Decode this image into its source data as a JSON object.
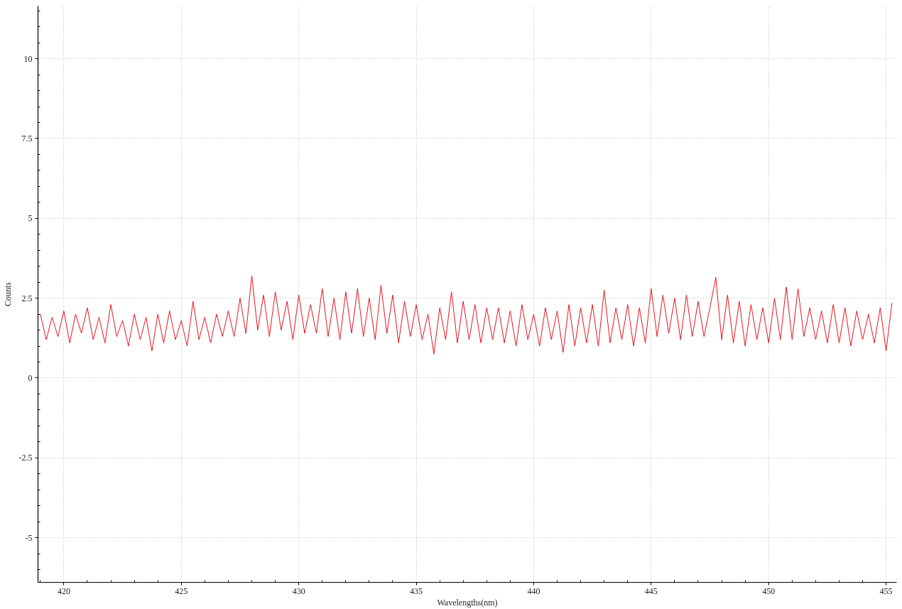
{
  "chart_data": {
    "type": "line",
    "xlabel": "Wavelengths(nm)",
    "ylabel": "Counts",
    "xlim": [
      418.9,
      455.45
    ],
    "ylim": [
      -6.4,
      11.65
    ],
    "xticks": [
      {
        "value": 419,
        "label": null
      },
      420,
      {
        "value": 421,
        "label": null
      },
      {
        "value": 422,
        "label": null
      },
      {
        "value": 423,
        "label": null
      },
      {
        "value": 424,
        "label": null
      },
      425,
      {
        "value": 426,
        "label": null
      },
      {
        "value": 427,
        "label": null
      },
      {
        "value": 428,
        "label": null
      },
      {
        "value": 429,
        "label": null
      },
      430,
      {
        "value": 431,
        "label": null
      },
      {
        "value": 432,
        "label": null
      },
      {
        "value": 433,
        "label": null
      },
      {
        "value": 434,
        "label": null
      },
      435,
      {
        "value": 436,
        "label": null
      },
      {
        "value": 437,
        "label": null
      },
      {
        "value": 438,
        "label": null
      },
      {
        "value": 439,
        "label": null
      },
      440,
      {
        "value": 441,
        "label": null
      },
      {
        "value": 442,
        "label": null
      },
      {
        "value": 443,
        "label": null
      },
      {
        "value": 444,
        "label": null
      },
      445,
      {
        "value": 446,
        "label": null
      },
      {
        "value": 447,
        "label": null
      },
      {
        "value": 448,
        "label": null
      },
      {
        "value": 449,
        "label": null
      },
      450,
      {
        "value": 451,
        "label": null
      },
      {
        "value": 452,
        "label": null
      },
      {
        "value": 453,
        "label": null
      },
      {
        "value": 454,
        "label": null
      },
      455
    ],
    "yticks": [
      {
        "value": -6,
        "label": null
      },
      {
        "value": -5.5,
        "label": null
      },
      -5,
      {
        "value": -4.5,
        "label": null
      },
      {
        "value": -4,
        "label": null
      },
      {
        "value": -3.5,
        "label": null
      },
      {
        "value": -3,
        "label": null
      },
      -2.5,
      {
        "value": -2,
        "label": null
      },
      {
        "value": -1.5,
        "label": null
      },
      {
        "value": -1,
        "label": null
      },
      {
        "value": -0.5,
        "label": null
      },
      0,
      {
        "value": 0.5,
        "label": null
      },
      {
        "value": 1,
        "label": null
      },
      {
        "value": 1.5,
        "label": null
      },
      {
        "value": 2,
        "label": null
      },
      2.5,
      {
        "value": 3,
        "label": null
      },
      {
        "value": 3.5,
        "label": null
      },
      {
        "value": 4,
        "label": null
      },
      {
        "value": 4.5,
        "label": null
      },
      5,
      {
        "value": 5.5,
        "label": null
      },
      {
        "value": 6,
        "label": null
      },
      {
        "value": 6.5,
        "label": null
      },
      {
        "value": 7,
        "label": null
      },
      7.5,
      {
        "value": 8,
        "label": null
      },
      {
        "value": 8.5,
        "label": null
      },
      {
        "value": 9,
        "label": null
      },
      {
        "value": 9.5,
        "label": null
      },
      10,
      {
        "value": 10.5,
        "label": null
      },
      {
        "value": 11,
        "label": null
      },
      {
        "value": 11.5,
        "label": null
      }
    ],
    "grid": true,
    "x": [
      419.0,
      419.25,
      419.5,
      419.75,
      420.0,
      420.25,
      420.5,
      420.75,
      421.0,
      421.25,
      421.5,
      421.75,
      422.0,
      422.25,
      422.5,
      422.75,
      423.0,
      423.25,
      423.5,
      423.75,
      424.0,
      424.25,
      424.5,
      424.75,
      425.0,
      425.25,
      425.5,
      425.75,
      426.0,
      426.25,
      426.5,
      426.75,
      427.0,
      427.25,
      427.5,
      427.75,
      428.0,
      428.25,
      428.5,
      428.75,
      429.0,
      429.25,
      429.5,
      429.75,
      430.0,
      430.25,
      430.5,
      430.75,
      431.0,
      431.25,
      431.5,
      431.75,
      432.0,
      432.25,
      432.5,
      432.75,
      433.0,
      433.25,
      433.5,
      433.75,
      434.0,
      434.25,
      434.5,
      434.75,
      435.0,
      435.25,
      435.5,
      435.75,
      436.0,
      436.25,
      436.5,
      436.75,
      437.0,
      437.25,
      437.5,
      437.75,
      438.0,
      438.25,
      438.5,
      438.75,
      439.0,
      439.25,
      439.5,
      439.75,
      440.0,
      440.25,
      440.5,
      440.75,
      441.0,
      441.25,
      441.5,
      441.75,
      442.0,
      442.25,
      442.5,
      442.75,
      443.0,
      443.25,
      443.5,
      443.75,
      444.0,
      444.25,
      444.5,
      444.75,
      445.0,
      445.25,
      445.5,
      445.75,
      446.0,
      446.25,
      446.5,
      446.75,
      447.0,
      447.25,
      447.5,
      447.75,
      448.0,
      448.25,
      448.5,
      448.75,
      449.0,
      449.25,
      449.5,
      449.75,
      450.0,
      450.25,
      450.5,
      450.75,
      451.0,
      451.25,
      451.5,
      451.75,
      452.0,
      452.25,
      452.5,
      452.75,
      453.0,
      453.25,
      453.5,
      453.75,
      454.0,
      454.25,
      454.5,
      454.75,
      455.0,
      455.25
    ],
    "series": [
      {
        "color": "#e8141c",
        "values": [
          2.0,
          1.2,
          1.9,
          1.3,
          2.1,
          1.1,
          2.0,
          1.4,
          2.2,
          1.2,
          1.9,
          1.1,
          2.3,
          1.3,
          1.8,
          1.0,
          2.0,
          1.2,
          1.9,
          0.85,
          2.0,
          1.1,
          2.1,
          1.2,
          1.8,
          1.0,
          2.4,
          1.2,
          1.9,
          1.1,
          2.0,
          1.3,
          2.1,
          1.3,
          2.5,
          1.4,
          3.2,
          1.5,
          2.6,
          1.3,
          2.7,
          1.5,
          2.4,
          1.2,
          2.6,
          1.4,
          2.3,
          1.4,
          2.8,
          1.3,
          2.5,
          1.2,
          2.7,
          1.4,
          2.8,
          1.3,
          2.5,
          1.2,
          2.9,
          1.4,
          2.6,
          1.1,
          2.4,
          1.3,
          2.3,
          1.2,
          2.0,
          0.75,
          2.2,
          1.2,
          2.7,
          1.1,
          2.4,
          1.2,
          2.3,
          1.1,
          2.2,
          1.2,
          2.2,
          1.1,
          2.1,
          1.0,
          2.3,
          1.2,
          2.0,
          1.0,
          2.2,
          1.2,
          2.1,
          0.8,
          2.3,
          1.0,
          2.2,
          1.1,
          2.3,
          1.0,
          2.75,
          1.1,
          2.2,
          1.2,
          2.3,
          1.0,
          2.2,
          1.1,
          2.8,
          1.3,
          2.6,
          1.4,
          2.5,
          1.2,
          2.6,
          1.3,
          2.4,
          1.3,
          2.2,
          3.15,
          1.2,
          2.6,
          1.1,
          2.4,
          1.0,
          2.3,
          1.2,
          2.2,
          1.1,
          2.5,
          1.2,
          2.85,
          1.2,
          2.8,
          1.3,
          2.2,
          1.2,
          2.1,
          1.1,
          2.3,
          1.1,
          2.2,
          1.0,
          2.1,
          1.2,
          2.0,
          1.1,
          2.2,
          0.85,
          2.35
        ]
      }
    ]
  }
}
